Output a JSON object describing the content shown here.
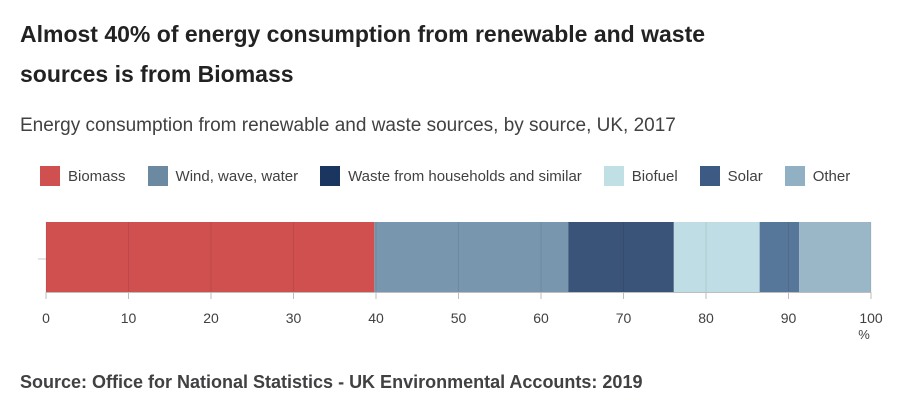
{
  "title": "Almost 40% of energy consumption from renewable and waste sources is from Biomass",
  "subtitle": "Energy consumption from renewable and waste sources, by source, UK, 2017",
  "source": "Source: Office for National Statistics - UK Environmental Accounts: 2019",
  "chart_data": {
    "type": "bar",
    "orientation": "horizontal",
    "stacked": true,
    "title": "Almost 40% of energy consumption from renewable and waste sources is from Biomass",
    "subtitle": "Energy consumption from renewable and waste sources, by source, UK, 2017",
    "categories": [
      ""
    ],
    "series": [
      {
        "name": "Biomass",
        "values": [
          39.8
        ],
        "color": "#d0504f"
      },
      {
        "name": "Wind, wave, water",
        "values": [
          23.5
        ],
        "color": "#7896ae"
      },
      {
        "name": "Waste from households and similar",
        "values": [
          12.8
        ],
        "color": "#3a5378"
      },
      {
        "name": "Biofuel",
        "values": [
          10.4
        ],
        "color": "#bfdde4"
      },
      {
        "name": "Solar",
        "values": [
          4.8
        ],
        "color": "#56769a"
      },
      {
        "name": "Other",
        "values": [
          8.7
        ],
        "color": "#9ab7c8"
      }
    ],
    "legend_colors": [
      "#d0504f",
      "#6b8aa2",
      "#1a355f",
      "#c1e0e6",
      "#3d5a85",
      "#92b0c3"
    ],
    "xlim": [
      0,
      100
    ],
    "xticks": [
      0,
      10,
      20,
      30,
      40,
      50,
      60,
      70,
      80,
      90,
      100
    ],
    "xunit": "%",
    "grid": true,
    "legend_position": "top"
  }
}
